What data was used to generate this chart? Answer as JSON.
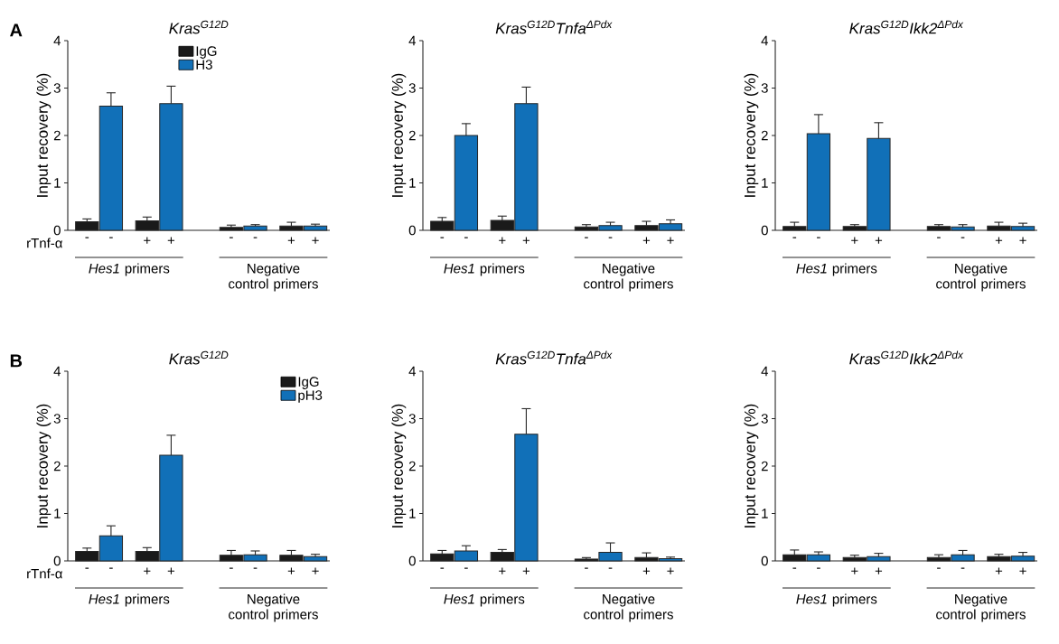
{
  "chart_data": [
    {
      "type": "bar",
      "title": "Kras$^{G12D}$",
      "ylabel": "Input recovery (%)",
      "categories": [
        "-",
        "-",
        "+",
        "+",
        "-",
        "-",
        "+",
        "+"
      ],
      "ylim": [
        0,
        4
      ],
      "yticks": [
        0,
        1,
        2,
        3,
        4
      ],
      "legend": "top",
      "series": [
        {
          "name": "IgG",
          "color": "#1a1a1a",
          "values": [
            0.18,
            null,
            0.2,
            null,
            0.06,
            null,
            0.09,
            null
          ],
          "errors": [
            0.06,
            null,
            0.08,
            null,
            0.05,
            null,
            0.08,
            null
          ]
        },
        {
          "name": "H3",
          "color": "#1170b8",
          "values": [
            null,
            2.62,
            null,
            2.67,
            null,
            0.09,
            null,
            0.09
          ],
          "errors": [
            null,
            0.28,
            null,
            0.37,
            null,
            0.03,
            null,
            0.04
          ]
        }
      ],
      "annotations": [
        "*Hes1* primers",
        "Negative control primers",
        "rTnf-α",
        "A"
      ]
    },
    {
      "type": "bar",
      "title": "Kras$^{G12D}$Tnfa$^{ΔPdx}$",
      "ylabel": "Input recovery (%)",
      "categories": [
        "-",
        "-",
        "+",
        "+",
        "-",
        "-",
        "+",
        "+"
      ],
      "ylim": [
        0,
        4
      ],
      "yticks": [
        0,
        1,
        2,
        3,
        4
      ],
      "series": [
        {
          "color": "#1a1a1a",
          "values": [
            0.19,
            null,
            0.21,
            null,
            0.07,
            null,
            0.1,
            null
          ],
          "errors": [
            0.08,
            null,
            0.09,
            null,
            0.05,
            null,
            0.09,
            null
          ]
        },
        {
          "color": "#1170b8",
          "values": [
            null,
            2.0,
            null,
            2.67,
            null,
            0.1,
            null,
            0.14
          ],
          "errors": [
            null,
            0.25,
            null,
            0.35,
            null,
            0.07,
            null,
            0.08
          ]
        }
      ],
      "annotations": [
        "*Hes1* primers",
        "Negative control primers"
      ]
    },
    {
      "type": "bar",
      "title": "Kras$^{G12D}$Ikk2$^{ΔPdx}$",
      "ylabel": "Input recovery (%)",
      "categories": [
        "-",
        "-",
        "+",
        "+",
        "-",
        "-",
        "+",
        "+"
      ],
      "ylim": [
        0,
        4
      ],
      "yticks": [
        0,
        1,
        2,
        3,
        4
      ],
      "series": [
        {
          "color": "#1a1a1a",
          "values": [
            0.08,
            null,
            0.08,
            null,
            0.08,
            null,
            0.09,
            null
          ],
          "errors": [
            0.09,
            null,
            0.04,
            null,
            0.04,
            null,
            0.08,
            null
          ]
        },
        {
          "color": "#1170b8",
          "values": [
            null,
            2.04,
            null,
            1.94,
            null,
            0.07,
            null,
            0.08
          ],
          "errors": [
            null,
            0.4,
            null,
            0.33,
            null,
            0.05,
            null,
            0.07
          ]
        }
      ],
      "annotations": [
        "*Hes1* primers",
        "Negative control primers"
      ]
    },
    {
      "type": "bar",
      "title": "Kras$^{G12D}$",
      "ylabel": "Input recovery (%)",
      "categories": [
        "-",
        "-",
        "+",
        "+",
        "-",
        "-",
        "+",
        "+"
      ],
      "ylim": [
        0,
        4
      ],
      "yticks": [
        0,
        1,
        2,
        3,
        4
      ],
      "legend": "top right",
      "series": [
        {
          "name": "IgG",
          "color": "#1a1a1a",
          "values": [
            0.2,
            null,
            0.2,
            null,
            0.12,
            null,
            0.12,
            null
          ],
          "errors": [
            0.07,
            null,
            0.08,
            null,
            0.1,
            null,
            0.1,
            null
          ]
        },
        {
          "name": "pH3",
          "color": "#1170b8",
          "values": [
            null,
            0.53,
            null,
            2.23,
            null,
            0.13,
            null,
            0.09
          ],
          "errors": [
            null,
            0.21,
            null,
            0.42,
            null,
            0.08,
            null,
            0.05
          ]
        }
      ],
      "annotations": [
        "*Hes1* primers",
        "Negative control primers",
        "rTnf-α",
        "B"
      ]
    },
    {
      "type": "bar",
      "title": "Kras$^{G12D}$Tnfa$^{ΔPdx}$",
      "ylabel": "Input recovery (%)",
      "categories": [
        "-",
        "-",
        "+",
        "+",
        "-",
        "-",
        "+",
        "+"
      ],
      "ylim": [
        0,
        4
      ],
      "yticks": [
        0,
        1,
        2,
        3,
        4
      ],
      "series": [
        {
          "color": "#1a1a1a",
          "values": [
            0.15,
            null,
            0.18,
            null,
            0.04,
            null,
            0.07,
            null
          ],
          "errors": [
            0.07,
            null,
            0.06,
            null,
            0.03,
            null,
            0.1,
            null
          ]
        },
        {
          "color": "#1170b8",
          "values": [
            null,
            0.21,
            null,
            2.67,
            null,
            0.18,
            null,
            0.05
          ],
          "errors": [
            null,
            0.11,
            null,
            0.54,
            null,
            0.2,
            null,
            0.03
          ]
        }
      ],
      "annotations": [
        "*Hes1* primers",
        "Negative control primers"
      ]
    },
    {
      "type": "bar",
      "title": "Kras$^{G12D}$Ikk2$^{ΔPdx}$",
      "ylabel": "Input recovery (%)",
      "categories": [
        "-",
        "-",
        "+",
        "+",
        "-",
        "-",
        "+",
        "+"
      ],
      "ylim": [
        0,
        4
      ],
      "yticks": [
        0,
        1,
        2,
        3,
        4
      ],
      "series": [
        {
          "color": "#1a1a1a",
          "values": [
            0.13,
            null,
            0.07,
            null,
            0.07,
            null,
            0.09,
            null
          ],
          "errors": [
            0.1,
            null,
            0.05,
            null,
            0.06,
            null,
            0.05,
            null
          ]
        },
        {
          "color": "#1170b8",
          "values": [
            null,
            0.13,
            null,
            0.09,
            null,
            0.13,
            null,
            0.1
          ],
          "errors": [
            null,
            0.06,
            null,
            0.07,
            null,
            0.09,
            null,
            0.08
          ]
        }
      ],
      "annotations": [
        "*Hes1* primers",
        "Negative control primers"
      ]
    }
  ]
}
